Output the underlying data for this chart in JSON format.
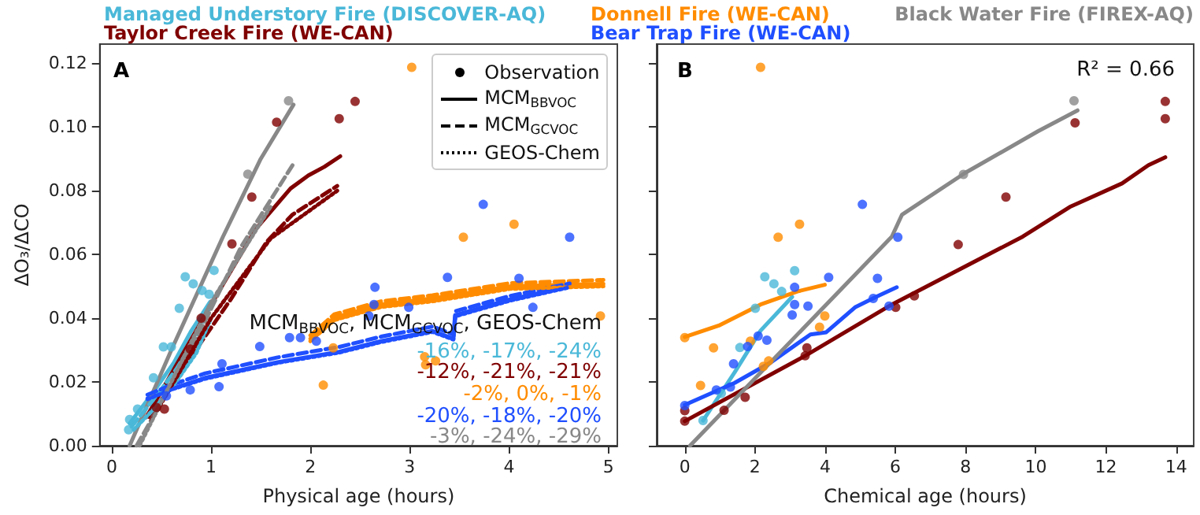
{
  "chart_data": [
    {
      "type": "scatter",
      "title": "A",
      "xlabel": "Physical age (hours)",
      "ylabel": "ΔO₃/ΔCO",
      "xlim": [
        -0.12,
        5.09
      ],
      "ylim": [
        0,
        0.126
      ],
      "xticks": [
        0,
        1,
        2,
        3,
        4,
        5
      ],
      "yticks": [
        {
          "value": 0,
          "label": "0.00"
        },
        {
          "value": 0.02,
          "label": "0.02"
        },
        {
          "value": 0.04,
          "label": "0.04"
        },
        {
          "value": 0.06,
          "label": "0.06"
        },
        {
          "value": 0.08,
          "label": "0.08"
        },
        {
          "value": 0.1,
          "label": "0.10"
        },
        {
          "value": 0.12,
          "label": "0.12"
        }
      ],
      "grid": false,
      "legend": "top right",
      "annotations": [
        "Observation",
        "MCM$_{BBVOC}$",
        "MCM$_{GCVOC}$",
        "GEOS-Chem",
        "MCM$_{BBVOC}$, MCM$_{GCVOC}$, GEOS-Chem",
        "-16%, -17%, -24%",
        "-12%, -21%, -21%",
        "-2%, 0%, -1%",
        "-20%, -18%, -20%",
        "-3%, -24%, -29%"
      ],
      "series": [
        {
          "name": "Managed Understory Fire (DISCOVER-AQ)",
          "type": "scatter",
          "marker": "circle",
          "color": "#4ab8d8",
          "x": [
            0.17,
            0.18,
            0.26,
            0.42,
            0.52,
            0.6,
            0.68,
            0.74,
            0.82,
            0.91,
            0.98,
            1.03
          ],
          "values": [
            0.005,
            0.0082,
            0.0115,
            0.0213,
            0.031,
            0.031,
            0.0431,
            0.053,
            0.0508,
            0.0487,
            0.0475,
            0.055
          ]
        },
        {
          "type": "line",
          "line_style": "solid",
          "color": "#4ab8d8",
          "x": [
            0.18,
            0.4,
            0.625,
            0.8,
            0.99
          ],
          "values": [
            0.007,
            0.016,
            0.026,
            0.036,
            0.0451
          ]
        },
        {
          "type": "line",
          "line_style": "dashed",
          "color": "#4ab8d8",
          "x": [
            0.2,
            0.42,
            0.65,
            0.83,
            1.0
          ],
          "values": [
            0.006,
            0.0145,
            0.024,
            0.033,
            0.044
          ]
        },
        {
          "type": "line",
          "line_style": "dotted",
          "color": "#4ab8d8",
          "x": [
            0.22,
            0.44,
            0.67,
            0.85,
            1.0
          ],
          "values": [
            0.005,
            0.012,
            0.021,
            0.029,
            0.04
          ]
        },
        {
          "name": "Taylor Creek Fire (WE-CAN)",
          "type": "scatter",
          "marker": "circle",
          "color": "#800000",
          "x": [
            0.45,
            0.53,
            0.79,
            0.9,
            1.21,
            1.41,
            1.66,
            2.29,
            2.45
          ],
          "values": [
            0.012,
            0.0115,
            0.0303,
            0.04,
            0.0633,
            0.078,
            0.1015,
            0.1026,
            0.108
          ]
        },
        {
          "type": "line",
          "line_style": "solid",
          "color": "#800000",
          "x": [
            0.35,
            0.7,
            1.07,
            1.45,
            1.8,
            1.98,
            2.14,
            2.3
          ],
          "values": [
            0.009,
            0.028,
            0.048,
            0.068,
            0.0807,
            0.0848,
            0.0875,
            0.0908
          ]
        },
        {
          "type": "line",
          "line_style": "dashed",
          "color": "#800000",
          "x": [
            0.38,
            0.8,
            1.2,
            1.56,
            1.82,
            1.98,
            2.27
          ],
          "values": [
            0.009,
            0.028,
            0.046,
            0.064,
            0.0725,
            0.0757,
            0.0815
          ]
        },
        {
          "type": "line",
          "line_style": "dotted",
          "color": "#800000",
          "x": [
            0.4,
            1.0,
            1.6,
            2.27
          ],
          "values": [
            0.008,
            0.04,
            0.065,
            0.08
          ]
        },
        {
          "name": "Donnell Fire (WE-CAN)",
          "type": "scatter",
          "marker": "circle",
          "color": "#ff8c00",
          "x": [
            2.13,
            2.23,
            3.02,
            3.15,
            3.16,
            3.26,
            3.54,
            4.05,
            4.92
          ],
          "values": [
            0.019,
            0.0307,
            0.1187,
            0.0279,
            0.0254,
            0.0266,
            0.0654,
            0.0695,
            0.0407
          ]
        },
        {
          "type": "line",
          "line_style": "solid",
          "color": "#ff8c00",
          "x": [
            2.0,
            2.24,
            2.71,
            3.23,
            4.01,
            4.95
          ],
          "values": [
            0.0336,
            0.0402,
            0.0443,
            0.0462,
            0.05,
            0.0508
          ]
        },
        {
          "type": "line",
          "line_style": "dashed",
          "color": "#ff8c00",
          "x": [
            2.0,
            2.24,
            2.71,
            3.23,
            4.01,
            4.95
          ],
          "values": [
            0.0346,
            0.0412,
            0.0453,
            0.0472,
            0.051,
            0.052
          ]
        },
        {
          "type": "line",
          "line_style": "dotted",
          "color": "#ff8c00",
          "x": [
            2.0,
            2.24,
            2.71,
            3.23,
            4.01,
            4.95
          ],
          "values": [
            0.0328,
            0.0394,
            0.0435,
            0.0453,
            0.0492,
            0.05
          ]
        },
        {
          "name": "Bear Trap Fire (WE-CAN)",
          "type": "scatter",
          "marker": "circle",
          "color": "#1f4fff",
          "x": [
            0.55,
            0.79,
            1.08,
            1.11,
            1.49,
            1.79,
            1.9,
            2.06,
            2.59,
            2.64,
            2.65,
            2.99,
            3.38,
            3.74,
            4.1,
            4.24,
            4.61
          ],
          "values": [
            0.0156,
            0.0175,
            0.0185,
            0.0257,
            0.0311,
            0.0339,
            0.0339,
            0.0328,
            0.0407,
            0.0443,
            0.0497,
            0.0434,
            0.0528,
            0.0757,
            0.0525,
            0.0434,
            0.0654
          ]
        },
        {
          "type": "line",
          "line_style": "solid",
          "color": "#1f4fff",
          "x": [
            0.36,
            0.62,
            0.94,
            1.67,
            2.29,
            2.71,
            3.23,
            3.44,
            3.46,
            4.01,
            4.61
          ],
          "values": [
            0.0148,
            0.018,
            0.0213,
            0.0262,
            0.0295,
            0.0328,
            0.036,
            0.0336,
            0.041,
            0.0459,
            0.05
          ]
        },
        {
          "type": "line",
          "line_style": "dashed",
          "color": "#1f4fff",
          "x": [
            0.36,
            0.62,
            0.94,
            1.67,
            2.29,
            2.71,
            3.23,
            3.44,
            3.46,
            4.01,
            4.61
          ],
          "values": [
            0.016,
            0.0193,
            0.0227,
            0.0277,
            0.031,
            0.0342,
            0.0374,
            0.0349,
            0.0422,
            0.047,
            0.0509
          ]
        },
        {
          "type": "line",
          "line_style": "dotted",
          "color": "#1f4fff",
          "x": [
            0.36,
            0.62,
            0.94,
            1.67,
            2.29,
            2.71,
            3.23,
            3.44,
            3.46,
            4.01,
            4.61
          ],
          "values": [
            0.0146,
            0.0178,
            0.021,
            0.026,
            0.0292,
            0.0325,
            0.0357,
            0.0333,
            0.0406,
            0.0455,
            0.0497
          ]
        },
        {
          "name": "Black Water Fire (FIREX-AQ)",
          "type": "scatter",
          "marker": "circle",
          "color": "#888888",
          "x": [
            1.37,
            1.78
          ],
          "values": [
            0.0852,
            0.1082
          ]
        },
        {
          "type": "line",
          "line_style": "solid",
          "color": "#888888",
          "x": [
            0.18,
            0.6,
            1.12,
            1.5,
            1.83
          ],
          "values": [
            0,
            0.03,
            0.0656,
            0.09,
            0.107
          ]
        },
        {
          "type": "line",
          "line_style": "dashed",
          "color": "#888888",
          "x": [
            0.25,
            0.8,
            1.3,
            1.83
          ],
          "values": [
            0,
            0.03,
            0.0623,
            0.0885
          ]
        },
        {
          "type": "line",
          "line_style": "dotted",
          "color": "#888888",
          "x": [
            0.28,
            1.0,
            1.6
          ],
          "values": [
            0,
            0.045,
            0.075
          ]
        }
      ]
    },
    {
      "type": "scatter",
      "title": "B",
      "xlabel": "Chemical age (hours)",
      "xlim": [
        -0.8,
        14.5
      ],
      "ylim": [
        0,
        0.126
      ],
      "xticks": [
        0,
        2,
        4,
        6,
        8,
        10,
        12,
        14
      ],
      "yticks": [
        0,
        0.02,
        0.04,
        0.06,
        0.08,
        0.1,
        0.12
      ],
      "tick_labels": "x",
      "grid": false,
      "annotations": [
        "R² = 0.66"
      ],
      "series": [
        {
          "type": "scatter",
          "marker": "circle",
          "color": "#4ab8d8",
          "x": [
            0.52,
            1.04,
            1.57,
            2.01,
            2.28,
            2.54,
            2.76,
            3.13
          ],
          "values": [
            0.0079,
            0.0164,
            0.0308,
            0.0431,
            0.053,
            0.0508,
            0.0484,
            0.0549
          ]
        },
        {
          "type": "line",
          "line_style": "solid",
          "color": "#4ab8d8",
          "x": [
            0.52,
            1.42,
            2.16,
            3.06
          ],
          "values": [
            0.0079,
            0.023,
            0.0361,
            0.0467
          ]
        },
        {
          "type": "scatter",
          "marker": "circle",
          "color": "#800000",
          "x": [
            0,
            0,
            1.12,
            1.72,
            3.43,
            3.48,
            6.01,
            6.54,
            7.79,
            9.15,
            11.12,
            13.69,
            13.69
          ],
          "values": [
            0.0077,
            0.011,
            0.0111,
            0.0152,
            0.0282,
            0.0307,
            0.0434,
            0.047,
            0.0631,
            0.078,
            0.1013,
            0.1026,
            0.108
          ]
        },
        {
          "type": "line",
          "line_style": "solid",
          "color": "#800000",
          "x": [
            0,
            3.43,
            5.9,
            9.63,
            10.97,
            12.46,
            13.21,
            13.69
          ],
          "values": [
            0.0077,
            0.0282,
            0.0443,
            0.0656,
            0.0749,
            0.0823,
            0.088,
            0.0905
          ]
        },
        {
          "type": "scatter",
          "marker": "circle",
          "color": "#ff8c00",
          "x": [
            0,
            0.45,
            0.82,
            1.87,
            2.16,
            2.24,
            2.39,
            2.66,
            3.27,
            3.84,
            3.99
          ],
          "values": [
            0.0339,
            0.0189,
            0.0307,
            0.0328,
            0.1187,
            0.0249,
            0.0266,
            0.0654,
            0.0695,
            0.0372,
            0.0407
          ]
        },
        {
          "type": "line",
          "line_style": "solid",
          "color": "#ff8c00",
          "x": [
            0,
            0.97,
            2.16,
            3.21,
            3.99
          ],
          "values": [
            0.0341,
            0.0377,
            0.0443,
            0.0484,
            0.0505
          ]
        },
        {
          "type": "scatter",
          "marker": "circle",
          "color": "#1f4fff",
          "x": [
            0,
            0.9,
            1.3,
            1.39,
            1.79,
            2.09,
            2.34,
            3.06,
            3.13,
            3.13,
            3.51,
            4.1,
            5.06,
            5.37,
            5.49,
            5.82,
            6.07
          ],
          "values": [
            0.0126,
            0.0175,
            0.0184,
            0.0257,
            0.0311,
            0.0344,
            0.0331,
            0.041,
            0.0443,
            0.0497,
            0.0438,
            0.0528,
            0.0757,
            0.0462,
            0.0525,
            0.0438,
            0.0654
          ]
        },
        {
          "type": "line",
          "line_style": "solid",
          "color": "#1f4fff",
          "x": [
            0,
            1.42,
            2.46,
            3.58,
            4.03,
            4.85,
            5.45,
            6.04
          ],
          "values": [
            0.0128,
            0.0197,
            0.0262,
            0.0349,
            0.0356,
            0.0434,
            0.0467,
            0.0497
          ]
        },
        {
          "type": "scatter",
          "marker": "circle",
          "color": "#888888",
          "x": [
            7.94,
            11.09
          ],
          "values": [
            0.0851,
            0.1082
          ]
        },
        {
          "type": "line",
          "line_style": "solid",
          "color": "#888888",
          "x": [
            0.15,
            5.9,
            6.19,
            7.99,
            10.07,
            11.19
          ],
          "values": [
            0,
            0.0656,
            0.0725,
            0.0856,
            0.0987,
            0.1052
          ]
        }
      ]
    }
  ]
}
